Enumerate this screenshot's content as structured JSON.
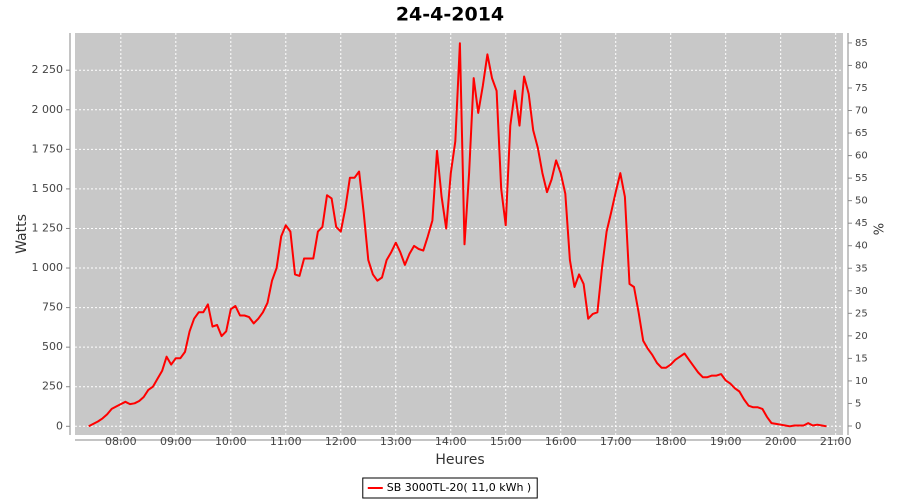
{
  "chart_data": {
    "type": "line",
    "title": "24-4-2014",
    "xlabel": "Heures",
    "ylabel": "Watts",
    "y2label": "%",
    "x": [
      "07:25",
      "07:30",
      "07:35",
      "07:40",
      "07:45",
      "07:50",
      "07:55",
      "08:00",
      "08:05",
      "08:10",
      "08:15",
      "08:20",
      "08:25",
      "08:30",
      "08:35",
      "08:40",
      "08:45",
      "08:50",
      "08:55",
      "09:00",
      "09:05",
      "09:10",
      "09:15",
      "09:20",
      "09:25",
      "09:30",
      "09:35",
      "09:40",
      "09:45",
      "09:50",
      "09:55",
      "10:00",
      "10:05",
      "10:10",
      "10:15",
      "10:20",
      "10:25",
      "10:30",
      "10:35",
      "10:40",
      "10:45",
      "10:50",
      "10:55",
      "11:00",
      "11:05",
      "11:10",
      "11:15",
      "11:20",
      "11:25",
      "11:30",
      "11:35",
      "11:40",
      "11:45",
      "11:50",
      "11:55",
      "12:00",
      "12:05",
      "12:10",
      "12:15",
      "12:20",
      "12:25",
      "12:30",
      "12:35",
      "12:40",
      "12:45",
      "12:50",
      "12:55",
      "13:00",
      "13:05",
      "13:10",
      "13:15",
      "13:20",
      "13:25",
      "13:30",
      "13:35",
      "13:40",
      "13:45",
      "13:50",
      "13:55",
      "14:00",
      "14:05",
      "14:10",
      "14:15",
      "14:20",
      "14:25",
      "14:30",
      "14:35",
      "14:40",
      "14:45",
      "14:50",
      "14:55",
      "15:00",
      "15:05",
      "15:10",
      "15:15",
      "15:20",
      "15:25",
      "15:30",
      "15:35",
      "15:40",
      "15:45",
      "15:50",
      "15:55",
      "16:00",
      "16:05",
      "16:10",
      "16:15",
      "16:20",
      "16:25",
      "16:30",
      "16:35",
      "16:40",
      "16:45",
      "16:50",
      "16:55",
      "17:00",
      "17:05",
      "17:10",
      "17:15",
      "17:20",
      "17:25",
      "17:30",
      "17:35",
      "17:40",
      "17:45",
      "17:50",
      "17:55",
      "18:00",
      "18:05",
      "18:10",
      "18:15",
      "18:20",
      "18:25",
      "18:30",
      "18:35",
      "18:40",
      "18:45",
      "18:50",
      "18:55",
      "19:00",
      "19:05",
      "19:10",
      "19:15",
      "19:20",
      "19:25",
      "19:30",
      "19:35",
      "19:40",
      "19:45",
      "19:50",
      "19:55",
      "20:00",
      "20:05",
      "20:10",
      "20:15",
      "20:20",
      "20:25",
      "20:30",
      "20:35",
      "20:40",
      "20:45",
      "20:50"
    ],
    "series": [
      {
        "name": "SB 3000TL-20( 11,0 kWh )",
        "color": "#ff0000",
        "values": [
          0,
          15,
          30,
          50,
          75,
          110,
          125,
          140,
          155,
          140,
          145,
          160,
          185,
          230,
          250,
          300,
          350,
          440,
          390,
          430,
          430,
          470,
          600,
          680,
          720,
          720,
          770,
          630,
          640,
          570,
          600,
          740,
          760,
          700,
          700,
          690,
          650,
          680,
          720,
          780,
          920,
          1000,
          1200,
          1270,
          1230,
          960,
          950,
          1060,
          1060,
          1060,
          1230,
          1260,
          1460,
          1440,
          1260,
          1230,
          1380,
          1570,
          1570,
          1610,
          1350,
          1050,
          960,
          920,
          940,
          1050,
          1100,
          1160,
          1100,
          1020,
          1090,
          1140,
          1120,
          1110,
          1200,
          1300,
          1740,
          1450,
          1250,
          1600,
          1800,
          2420,
          1150,
          1600,
          2200,
          1980,
          2150,
          2350,
          2200,
          2120,
          1500,
          1270,
          1900,
          2120,
          1900,
          2210,
          2100,
          1870,
          1760,
          1600,
          1480,
          1560,
          1680,
          1600,
          1470,
          1050,
          880,
          960,
          900,
          680,
          710,
          720,
          1000,
          1230,
          1350,
          1480,
          1600,
          1450,
          900,
          880,
          720,
          540,
          490,
          450,
          400,
          370,
          370,
          390,
          420,
          440,
          460,
          420,
          380,
          340,
          310,
          310,
          320,
          320,
          330,
          290,
          270,
          240,
          220,
          170,
          130,
          120,
          120,
          110,
          60,
          20,
          15,
          10,
          5,
          0,
          5,
          5,
          5,
          20,
          5,
          10,
          5,
          0
        ]
      }
    ],
    "xlim": [
      "07:10",
      "21:08"
    ],
    "xticks": [
      "08:00",
      "09:00",
      "10:00",
      "11:00",
      "12:00",
      "13:00",
      "14:00",
      "15:00",
      "16:00",
      "17:00",
      "18:00",
      "19:00",
      "20:00",
      "21:00"
    ],
    "ylim": [
      -55,
      2485
    ],
    "yticks": [
      0,
      250,
      500,
      750,
      {
        "value": 1000,
        "label": "1 000"
      },
      {
        "value": 1250,
        "label": "1 250"
      },
      {
        "value": 1500,
        "label": "1 500"
      },
      {
        "value": 1750,
        "label": "1 750"
      },
      {
        "value": 2000,
        "label": "2 000"
      },
      {
        "value": 2250,
        "label": "2 250"
      }
    ],
    "y2lim": [
      -2,
      87.2
    ],
    "y2ticks": [
      0,
      5,
      10,
      15,
      20,
      25,
      30,
      35,
      40,
      45,
      50,
      55,
      60,
      65,
      70,
      75,
      80,
      85
    ],
    "grid": true,
    "legend": "bottom"
  }
}
